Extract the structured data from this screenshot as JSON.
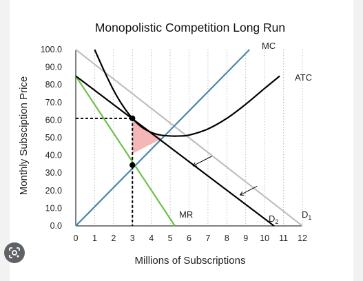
{
  "chart_data": {
    "type": "line",
    "title": "Monopolistic Competition Long Run",
    "xlabel": "Millions of Subscriptions",
    "ylabel": "Monthly Subsciption Price",
    "xlim": [
      0,
      12
    ],
    "ylim": [
      0,
      100
    ],
    "x_ticks": [
      "0",
      "1",
      "2",
      "3",
      "4",
      "5",
      "6",
      "7",
      "8",
      "9",
      "10",
      "11",
      "12"
    ],
    "y_ticks": [
      "0.0",
      "10.0",
      "20.0",
      "30.0",
      "40.0",
      "50.0",
      "60.0",
      "70.0",
      "80.0",
      "90.0",
      "100.0"
    ],
    "grid": "vertical-dotted",
    "series": [
      {
        "name": "MC",
        "color": "#4a87a8",
        "points": [
          [
            0,
            0
          ],
          [
            9.2,
            100
          ]
        ]
      },
      {
        "name": "ATC",
        "color": "#000000",
        "points": [
          [
            1,
            100
          ],
          [
            1.5,
            88
          ],
          [
            2,
            77
          ],
          [
            2.5,
            68
          ],
          [
            3,
            61
          ],
          [
            3.5,
            56
          ],
          [
            4,
            53
          ],
          [
            4.5,
            51.5
          ],
          [
            5,
            51
          ],
          [
            5.5,
            51
          ],
          [
            6,
            51.5
          ],
          [
            7,
            55
          ],
          [
            8,
            61
          ],
          [
            9,
            69
          ],
          [
            10,
            78
          ],
          [
            10.8,
            85
          ]
        ]
      },
      {
        "name": "D2",
        "color": "#000000",
        "points": [
          [
            0,
            85
          ],
          [
            10.5,
            0
          ]
        ]
      },
      {
        "name": "D1",
        "color": "#bfbfbf",
        "points": [
          [
            0,
            100
          ],
          [
            12,
            0
          ]
        ]
      },
      {
        "name": "MR",
        "color": "#6cc04a",
        "points": [
          [
            0,
            85
          ],
          [
            5.25,
            0
          ]
        ]
      }
    ],
    "labels": {
      "mc": "MC",
      "atc": "ATC",
      "mr": "MR",
      "d1": "D",
      "d1_sub": "1",
      "d2": "D",
      "d2_sub": "2"
    },
    "equilibrium": {
      "quantity": 3,
      "price": 61,
      "mr_mc_price": 34.5
    },
    "shaded_triangle": {
      "color": "#f4b6b6",
      "points": [
        [
          3,
          61
        ],
        [
          3,
          41
        ],
        [
          4.55,
          49.5
        ]
      ]
    },
    "shift_arrows": [
      {
        "from": [
          7.2,
          39.5
        ],
        "to": [
          6.2,
          34
        ]
      },
      {
        "from": [
          9.6,
          22.5
        ],
        "to": [
          8.7,
          17.5
        ]
      }
    ]
  },
  "ui": {
    "lens_icon": "lens-icon"
  }
}
